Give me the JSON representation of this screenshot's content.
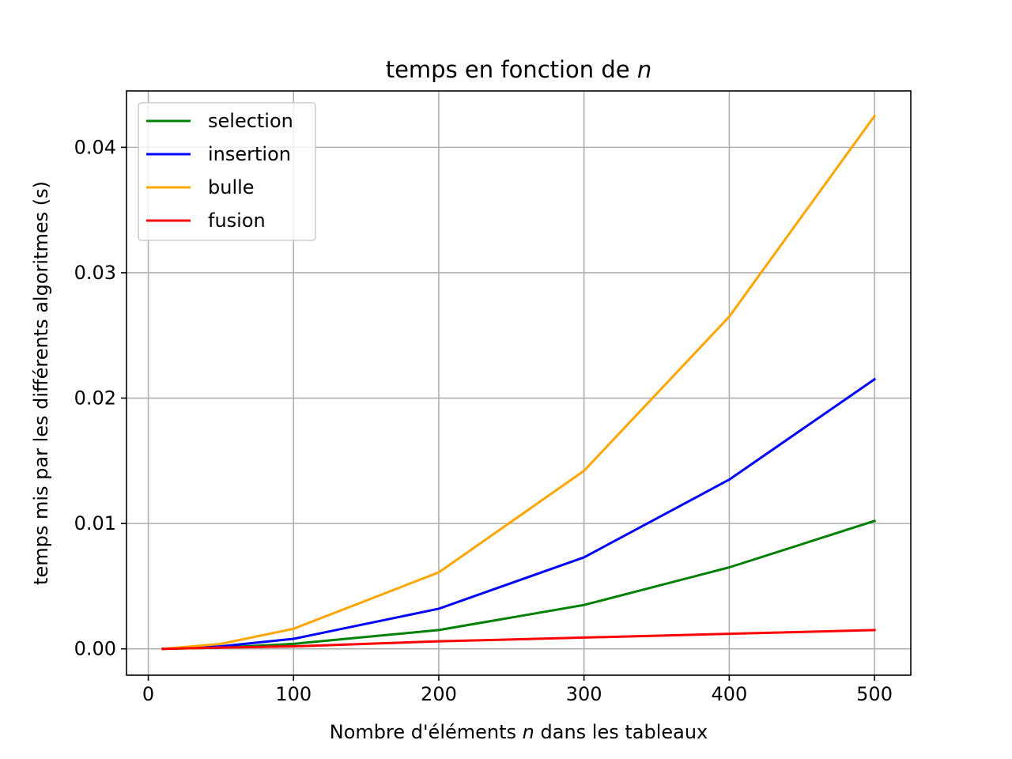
{
  "chart_data": {
    "type": "line",
    "title": {
      "prefix": "temps en fonction de ",
      "var": "n"
    },
    "xlabel": {
      "prefix": "Nombre d'éléments ",
      "var": "n",
      "suffix": " dans les tableaux"
    },
    "ylabel": "temps mis par les différents algoritmes (s)",
    "x": [
      10,
      50,
      100,
      200,
      300,
      400,
      500
    ],
    "xlim": [
      -15,
      525
    ],
    "ylim": [
      -0.0021,
      0.0445
    ],
    "xticks": [
      0,
      100,
      200,
      300,
      400,
      500
    ],
    "xtick_labels": [
      "0",
      "100",
      "200",
      "300",
      "400",
      "500"
    ],
    "yticks": [
      0.0,
      0.01,
      0.02,
      0.03,
      0.04
    ],
    "ytick_labels": [
      "0.00",
      "0.01",
      "0.02",
      "0.03",
      "0.04"
    ],
    "grid": true,
    "legend_position": "top-left",
    "series": [
      {
        "name": "selection",
        "color": "#008000",
        "values": [
          0.0,
          0.0001,
          0.0004,
          0.0015,
          0.0035,
          0.0065,
          0.0102
        ]
      },
      {
        "name": "insertion",
        "color": "#0000ff",
        "values": [
          0.0,
          0.0002,
          0.0008,
          0.0032,
          0.0073,
          0.0135,
          0.0215
        ]
      },
      {
        "name": "bulle",
        "color": "#ffa500",
        "values": [
          0.0,
          0.0004,
          0.0016,
          0.0061,
          0.0142,
          0.0265,
          0.0425
        ]
      },
      {
        "name": "fusion",
        "color": "#ff0000",
        "values": [
          0.0,
          0.0001,
          0.0002,
          0.0006,
          0.0009,
          0.0012,
          0.0015
        ]
      }
    ]
  }
}
